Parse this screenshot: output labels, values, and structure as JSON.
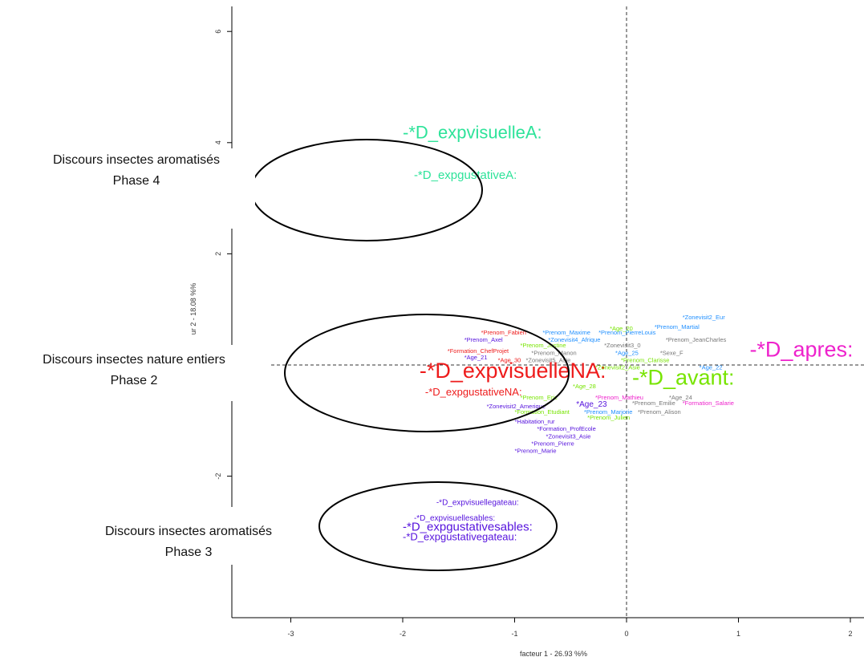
{
  "chart_data": {
    "type": "scatter",
    "title": "",
    "xlabel": "facteur  1  - 26.93 %%",
    "ylabel": "ur  2  - 18.08 %%",
    "xlim": [
      -3.5,
      2.1
    ],
    "ylim": [
      -3.2,
      6.6
    ],
    "xticks": [
      -3,
      -2,
      -1,
      0,
      1,
      2
    ],
    "yticks": [
      -2,
      2,
      4,
      6
    ],
    "reference_lines": {
      "x": 0,
      "y": 0,
      "style": "dashed"
    },
    "colors": {
      "teal": "#2ee39a",
      "green": "#77e400",
      "red": "#ee1b1b",
      "magenta": "#ee22cc",
      "blue": "#1f8fff",
      "purple": "#5511dd",
      "gray": "#777777"
    },
    "points": [
      {
        "label": "-*D_expvisuelleA:",
        "x": -2.0,
        "y": 4.08,
        "color": "teal",
        "size": "xl"
      },
      {
        "label": "-*D_expgustativeA:",
        "x": -1.9,
        "y": 3.35,
        "color": "teal",
        "size": "l"
      },
      {
        "label": "-*D_expvisuelleNA:",
        "x": -1.85,
        "y": -0.23,
        "color": "red",
        "size": "xxl"
      },
      {
        "label": "-*D_expgustativeNA:",
        "x": -1.8,
        "y": -0.55,
        "color": "red",
        "size": "m"
      },
      {
        "label": "-*D_apres:",
        "x": 1.1,
        "y": 0.15,
        "color": "magenta",
        "size": "xxl"
      },
      {
        "label": "-*D_avant:",
        "x": 0.05,
        "y": -0.35,
        "color": "green",
        "size": "xxl"
      },
      {
        "label": "-*D_expvisuellegateau:",
        "x": -1.7,
        "y": -2.52,
        "color": "purple",
        "size": "s"
      },
      {
        "label": "-*D_expvisuellesables:",
        "x": -1.9,
        "y": -2.8,
        "color": "purple",
        "size": "s"
      },
      {
        "label": "-*D_expgustativesables:",
        "x": -2.0,
        "y": -2.98,
        "color": "purple",
        "size": "l"
      },
      {
        "label": "-*D_expgustativegateau:",
        "x": -2.0,
        "y": -3.15,
        "color": "purple",
        "size": "m"
      },
      {
        "label": "*Prenom_Fabien",
        "x": -1.3,
        "y": 0.55,
        "color": "red",
        "size": "xs"
      },
      {
        "label": "*Prenom_Maxime",
        "x": -0.75,
        "y": 0.55,
        "color": "blue",
        "size": "xs"
      },
      {
        "label": "*Prenom_PierreLouis",
        "x": -0.25,
        "y": 0.55,
        "color": "blue",
        "size": "xs"
      },
      {
        "label": "*Age_20",
        "x": -0.15,
        "y": 0.62,
        "color": "green",
        "size": "xs"
      },
      {
        "label": "*Prenom_Martial",
        "x": 0.25,
        "y": 0.65,
        "color": "blue",
        "size": "xs"
      },
      {
        "label": "*Zonevisit2_Eur",
        "x": 0.5,
        "y": 0.82,
        "color": "blue",
        "size": "xs"
      },
      {
        "label": "*Prenom_Axel",
        "x": -1.45,
        "y": 0.42,
        "color": "purple",
        "size": "xs"
      },
      {
        "label": "*Zonevisit4_Afrique",
        "x": -0.7,
        "y": 0.42,
        "color": "blue",
        "size": "xs"
      },
      {
        "label": "*Prenom_JeanCharles",
        "x": 0.35,
        "y": 0.42,
        "color": "gray",
        "size": "xs"
      },
      {
        "label": "*Prenom_Justine",
        "x": -0.95,
        "y": 0.32,
        "color": "green",
        "size": "xs"
      },
      {
        "label": "*Zonevisit3_0",
        "x": -0.2,
        "y": 0.32,
        "color": "gray",
        "size": "xs"
      },
      {
        "label": "*Formation_ChefProjet",
        "x": -1.6,
        "y": 0.22,
        "color": "red",
        "size": "xs"
      },
      {
        "label": "*Prenom_Manon",
        "x": -0.85,
        "y": 0.18,
        "color": "gray",
        "size": "xs"
      },
      {
        "label": "*Age_25",
        "x": -0.1,
        "y": 0.18,
        "color": "blue",
        "size": "xs"
      },
      {
        "label": "*Sexe_F",
        "x": 0.3,
        "y": 0.18,
        "color": "gray",
        "size": "xs"
      },
      {
        "label": "*Age_21",
        "x": -1.45,
        "y": 0.1,
        "color": "purple",
        "size": "xs"
      },
      {
        "label": "*Age_30",
        "x": -1.15,
        "y": 0.05,
        "color": "red",
        "size": "xs"
      },
      {
        "label": "*Zonevisit5_Asie",
        "x": -0.9,
        "y": 0.05,
        "color": "gray",
        "size": "xs"
      },
      {
        "label": "*Prenom_Clarisse",
        "x": -0.05,
        "y": 0.05,
        "color": "green",
        "size": "xs"
      },
      {
        "label": "*Age_22",
        "x": 0.65,
        "y": -0.08,
        "color": "blue",
        "size": "xs"
      },
      {
        "label": "*Zonevisit2_Asie",
        "x": -0.28,
        "y": -0.08,
        "color": "green",
        "size": "xs"
      },
      {
        "label": "*Age_28",
        "x": -0.48,
        "y": -0.42,
        "color": "green",
        "size": "xs"
      },
      {
        "label": "*Prenom_Eric",
        "x": -0.95,
        "y": -0.62,
        "color": "green",
        "size": "xs"
      },
      {
        "label": "*Prenom_Mathieu",
        "x": -0.28,
        "y": -0.62,
        "color": "magenta",
        "size": "xs"
      },
      {
        "label": "*Age_24",
        "x": 0.38,
        "y": -0.62,
        "color": "gray",
        "size": "xs"
      },
      {
        "label": "*Age_23",
        "x": -0.45,
        "y": -0.75,
        "color": "purple",
        "size": "s"
      },
      {
        "label": "*Prenom_Emilie",
        "x": 0.05,
        "y": -0.72,
        "color": "gray",
        "size": "xs"
      },
      {
        "label": "*Formation_Salarie",
        "x": 0.5,
        "y": -0.72,
        "color": "magenta",
        "size": "xs"
      },
      {
        "label": "*Zonevisit2_Amerique",
        "x": -1.25,
        "y": -0.78,
        "color": "purple",
        "size": "xs"
      },
      {
        "label": "*Formation_Etudiant",
        "x": -1.0,
        "y": -0.88,
        "color": "green",
        "size": "xs"
      },
      {
        "label": "*Prenom_Marjorie",
        "x": -0.38,
        "y": -0.88,
        "color": "blue",
        "size": "xs"
      },
      {
        "label": "*Prenom_Alison",
        "x": 0.1,
        "y": -0.88,
        "color": "gray",
        "size": "xs"
      },
      {
        "label": "*Prenom_Julien",
        "x": -0.35,
        "y": -0.98,
        "color": "green",
        "size": "xs"
      },
      {
        "label": "*Habitation_rur",
        "x": -1.0,
        "y": -1.05,
        "color": "purple",
        "size": "xs"
      },
      {
        "label": "*Formation_ProfEcole",
        "x": -0.8,
        "y": -1.18,
        "color": "purple",
        "size": "xs"
      },
      {
        "label": "*Zonevisit3_Asie",
        "x": -0.72,
        "y": -1.32,
        "color": "purple",
        "size": "xs"
      },
      {
        "label": "*Prenom_Pierre",
        "x": -0.85,
        "y": -1.45,
        "color": "purple",
        "size": "xs"
      },
      {
        "label": "*Prenom_Marie",
        "x": -1.0,
        "y": -1.58,
        "color": "purple",
        "size": "xs"
      }
    ]
  },
  "annotations": [
    {
      "line1": "Discours insectes aromatisés",
      "line2": "Phase 4"
    },
    {
      "line1": "Discours insectes nature entiers",
      "line2": "Phase 2"
    },
    {
      "line1": "Discours insectes aromatisés",
      "line2": "Phase 3"
    }
  ]
}
